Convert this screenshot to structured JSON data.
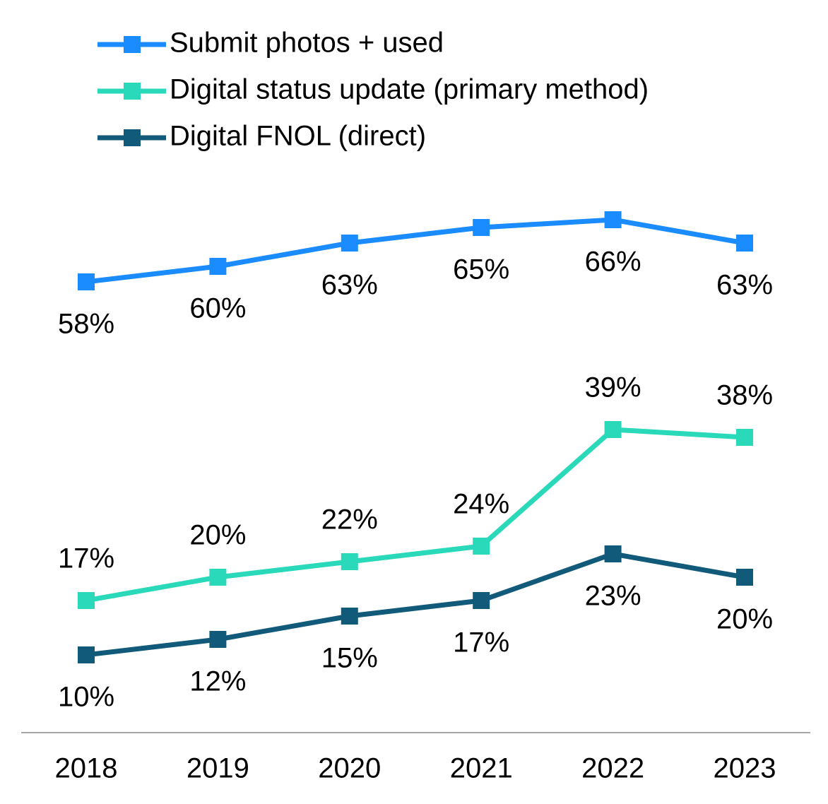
{
  "chart_data": {
    "type": "line",
    "categories": [
      "2018",
      "2019",
      "2020",
      "2021",
      "2022",
      "2023"
    ],
    "series": [
      {
        "name": "Submit photos + used",
        "color": "#1a8cff",
        "values": [
          58,
          60,
          63,
          65,
          66,
          63
        ],
        "value_labels": [
          "58%",
          "60%",
          "63%",
          "65%",
          "66%",
          "63%"
        ]
      },
      {
        "name": "Digital status update (primary method)",
        "color": "#2ad9b9",
        "values": [
          17,
          20,
          22,
          24,
          39,
          38
        ],
        "value_labels": [
          "17%",
          "20%",
          "22%",
          "24%",
          "39%",
          "38%"
        ]
      },
      {
        "name": "Digital FNOL (direct)",
        "color": "#125a7a",
        "values": [
          10,
          12,
          15,
          17,
          23,
          20
        ],
        "value_labels": [
          "10%",
          "12%",
          "15%",
          "17%",
          "23%",
          "20%"
        ]
      }
    ],
    "ylim": [
      0,
      70
    ],
    "legend": "top-left"
  }
}
